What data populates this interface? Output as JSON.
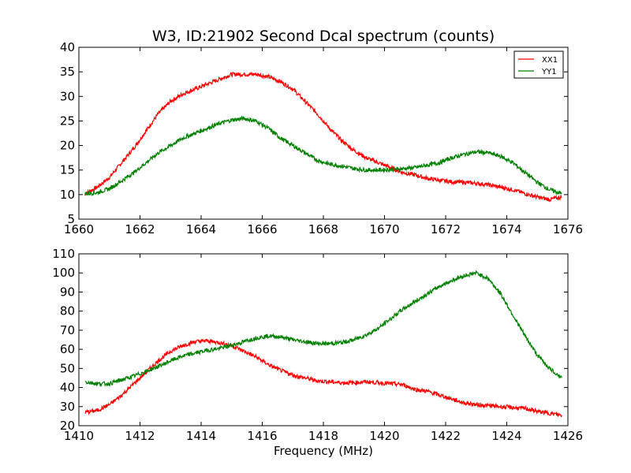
{
  "title": "W3, ID:21902 Second Dcal spectrum (counts)",
  "xlabel": "Frequency (MHz)",
  "colors": {
    "XX1": "#ff0000",
    "YY1": "#008000"
  },
  "chart_data": [
    {
      "type": "line",
      "title": "W3, ID:21902 Second Dcal spectrum (counts)",
      "xlabel": "",
      "ylabel": "",
      "xlim": [
        1660,
        1676
      ],
      "ylim": [
        5,
        40
      ],
      "xticks": [
        "1660",
        "1662",
        "1664",
        "1666",
        "1668",
        "1670",
        "1672",
        "1674",
        "1676"
      ],
      "yticks": [
        "5",
        "10",
        "15",
        "20",
        "25",
        "30",
        "35",
        "40"
      ],
      "legend": "top-right",
      "grid": false,
      "series": [
        {
          "name": "XX1",
          "color": "#ff0000",
          "x": [
            1660.2,
            1660.6,
            1661.0,
            1661.4,
            1661.8,
            1662.2,
            1662.6,
            1663.0,
            1663.4,
            1663.8,
            1664.2,
            1664.6,
            1665.0,
            1665.4,
            1665.8,
            1666.2,
            1666.6,
            1667.0,
            1667.4,
            1667.8,
            1668.2,
            1668.6,
            1669.0,
            1669.4,
            1669.8,
            1670.2,
            1670.6,
            1671.0,
            1671.4,
            1671.8,
            1672.2,
            1672.6,
            1673.0,
            1673.4,
            1673.8,
            1674.2,
            1674.6,
            1675.0,
            1675.4,
            1675.8
          ],
          "y": [
            10.2,
            11.5,
            13.5,
            16.5,
            19.5,
            23.0,
            26.5,
            29.0,
            30.5,
            31.5,
            32.5,
            33.5,
            34.5,
            34.5,
            34.5,
            34.0,
            33.0,
            31.5,
            29.0,
            26.5,
            23.5,
            21.0,
            19.0,
            17.5,
            16.5,
            15.5,
            14.5,
            14.0,
            13.3,
            12.9,
            12.6,
            12.5,
            12.3,
            12.0,
            11.5,
            11.0,
            10.2,
            9.5,
            9.0,
            9.5
          ]
        },
        {
          "name": "YY1",
          "color": "#008000",
          "x": [
            1660.2,
            1660.6,
            1661.0,
            1661.4,
            1661.8,
            1662.2,
            1662.6,
            1663.0,
            1663.4,
            1663.8,
            1664.2,
            1664.6,
            1665.0,
            1665.4,
            1665.8,
            1666.2,
            1666.6,
            1667.0,
            1667.4,
            1667.8,
            1668.2,
            1668.6,
            1669.0,
            1669.4,
            1669.8,
            1670.2,
            1670.6,
            1671.0,
            1671.4,
            1671.8,
            1672.2,
            1672.6,
            1673.0,
            1673.4,
            1673.8,
            1674.2,
            1674.6,
            1675.0,
            1675.4,
            1675.8
          ],
          "y": [
            10.2,
            10.4,
            11.2,
            12.8,
            14.5,
            16.5,
            18.5,
            20.0,
            21.5,
            22.5,
            23.5,
            24.5,
            25.2,
            25.5,
            25.0,
            23.5,
            21.5,
            20.0,
            18.5,
            17.0,
            16.2,
            15.8,
            15.3,
            15.0,
            15.0,
            15.1,
            15.3,
            15.5,
            16.0,
            16.5,
            17.5,
            18.2,
            18.7,
            18.5,
            17.8,
            16.5,
            14.5,
            12.5,
            11.0,
            10.2
          ]
        }
      ]
    },
    {
      "type": "line",
      "title": "",
      "xlabel": "Frequency (MHz)",
      "ylabel": "",
      "xlim": [
        1410,
        1426
      ],
      "ylim": [
        20,
        110
      ],
      "xticks": [
        "1410",
        "1412",
        "1414",
        "1416",
        "1418",
        "1420",
        "1422",
        "1424",
        "1426"
      ],
      "yticks": [
        "20",
        "30",
        "40",
        "50",
        "60",
        "70",
        "80",
        "90",
        "100",
        "110"
      ],
      "grid": false,
      "series": [
        {
          "name": "XX1",
          "color": "#ff0000",
          "x": [
            1410.2,
            1410.6,
            1411.0,
            1411.4,
            1411.8,
            1412.2,
            1412.6,
            1413.0,
            1413.4,
            1413.8,
            1414.2,
            1414.6,
            1415.0,
            1415.4,
            1415.8,
            1416.2,
            1416.6,
            1417.0,
            1417.4,
            1417.8,
            1418.2,
            1418.6,
            1419.0,
            1419.4,
            1419.8,
            1420.2,
            1420.6,
            1421.0,
            1421.4,
            1421.8,
            1422.2,
            1422.6,
            1423.0,
            1423.4,
            1423.8,
            1424.2,
            1424.6,
            1425.0,
            1425.4,
            1425.8
          ],
          "y": [
            27,
            28,
            31,
            36,
            42,
            48,
            54,
            59,
            62,
            64,
            64.5,
            63.5,
            62,
            59,
            56,
            52,
            49,
            46.5,
            45,
            43.5,
            43,
            42.5,
            42.5,
            43,
            42.5,
            42,
            41.5,
            39,
            38,
            36,
            34,
            32,
            31,
            30.5,
            30,
            29.5,
            29,
            27.5,
            26.5,
            25.5
          ]
        },
        {
          "name": "YY1",
          "color": "#008000",
          "x": [
            1410.2,
            1410.6,
            1411.0,
            1411.4,
            1411.8,
            1412.2,
            1412.6,
            1413.0,
            1413.4,
            1413.8,
            1414.2,
            1414.6,
            1415.0,
            1415.4,
            1415.8,
            1416.2,
            1416.6,
            1417.0,
            1417.4,
            1417.8,
            1418.2,
            1418.6,
            1419.0,
            1419.4,
            1419.8,
            1420.2,
            1420.6,
            1421.0,
            1421.4,
            1421.8,
            1422.2,
            1422.6,
            1423.0,
            1423.4,
            1423.8,
            1424.2,
            1424.6,
            1425.0,
            1425.4,
            1425.8
          ],
          "y": [
            43,
            42,
            42,
            44,
            46,
            48.5,
            51,
            54,
            56.5,
            58,
            59.5,
            60.5,
            62,
            64,
            66,
            67,
            66.5,
            65,
            64,
            63,
            63,
            63.5,
            65,
            67.5,
            71,
            76,
            81,
            85,
            89,
            93,
            96,
            98.5,
            100,
            97,
            89,
            78,
            67,
            57,
            50,
            45
          ]
        }
      ]
    }
  ]
}
